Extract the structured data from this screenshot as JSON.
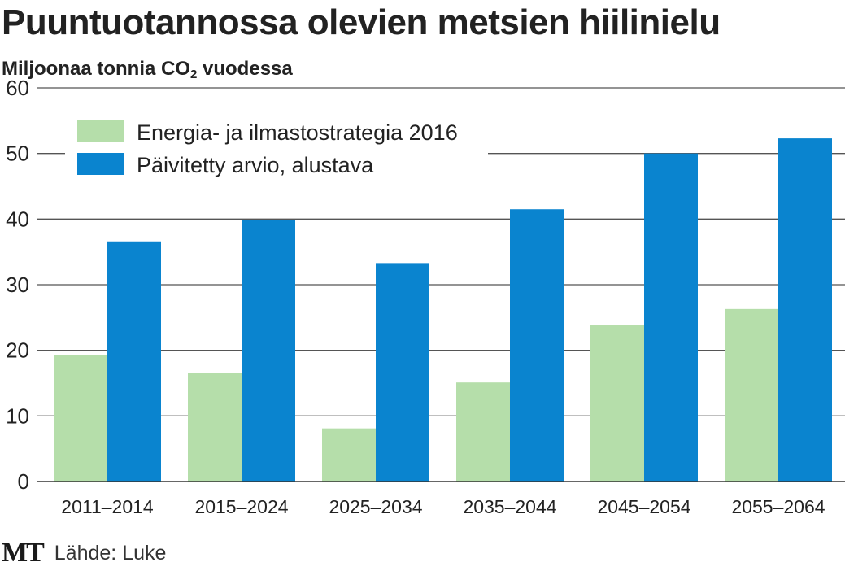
{
  "title": "Puuntuotannossa olevien metsien hiilinielu",
  "subtitle": {
    "text": "Miljoonaa tonnia CO",
    "sub": "2",
    "suffix": " vuodessa"
  },
  "footer": {
    "logo": "MT",
    "source": "Lähde: Luke"
  },
  "colors": {
    "series_1": "#b5deaa",
    "series_2": "#0a84cf",
    "grid": "#555555",
    "text": "#222222"
  },
  "chart_data": {
    "type": "bar",
    "categories": [
      "2011–2014",
      "2015–2024",
      "2025–2034",
      "2035–2044",
      "2045–2054",
      "2055–2064"
    ],
    "series": [
      {
        "name": "Energia- ja ilmastostrategia 2016",
        "values": [
          19.3,
          16.6,
          8.1,
          15.1,
          23.8,
          26.3
        ]
      },
      {
        "name": "Päivitetty arvio, alustava",
        "values": [
          36.6,
          39.9,
          33.3,
          41.5,
          50.0,
          52.3
        ]
      }
    ],
    "yticks": [
      0,
      10,
      20,
      30,
      40,
      50,
      60
    ],
    "ylim": [
      0,
      60
    ],
    "grid": true,
    "legend_position": "top-left",
    "xlabel": "",
    "ylabel": ""
  }
}
